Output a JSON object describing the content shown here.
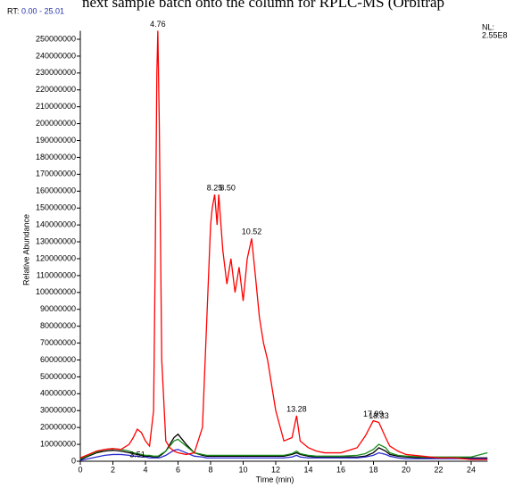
{
  "chart_data": {
    "type": "line",
    "caption": "next sample batch onto the column for RPLC-MS (Orbitrap",
    "rt_label": "RT:",
    "rt_range": "0.00 - 25.01",
    "nl_label": "NL:",
    "nl_value": "2.55E8",
    "xlabel": "Time (min)",
    "ylabel": "Relative Abundance",
    "xlim": [
      0,
      25.01
    ],
    "ylim": [
      0,
      255000000
    ],
    "xticks": [
      0,
      2,
      4,
      6,
      8,
      10,
      12,
      14,
      16,
      18,
      20,
      22,
      24
    ],
    "yticks": [
      0,
      10000000,
      20000000,
      30000000,
      40000000,
      50000000,
      60000000,
      70000000,
      80000000,
      90000000,
      100000000,
      110000000,
      120000000,
      130000000,
      140000000,
      150000000,
      160000000,
      170000000,
      180000000,
      190000000,
      200000000,
      210000000,
      220000000,
      230000000,
      240000000,
      250000000
    ],
    "x": [
      0,
      0.5,
      1,
      1.5,
      2,
      2.5,
      3,
      3.25,
      3.5,
      3.75,
      4,
      4.25,
      4.5,
      4.6,
      4.7,
      4.76,
      4.85,
      5,
      5.25,
      5.5,
      5.75,
      6,
      6.5,
      7,
      7.5,
      7.75,
      8,
      8.1,
      8.25,
      8.4,
      8.5,
      8.75,
      9,
      9.25,
      9.5,
      9.75,
      10,
      10.25,
      10.52,
      10.75,
      11,
      11.25,
      11.5,
      11.75,
      12,
      12.5,
      13,
      13.28,
      13.5,
      14,
      14.5,
      15,
      16,
      17,
      17.5,
      17.99,
      18.33,
      18.75,
      19,
      19.5,
      20,
      21,
      22,
      23,
      24,
      25
    ],
    "series": [
      {
        "name": "black",
        "color": "#000000",
        "values": [
          1000000,
          3000000,
          5000000,
          6000000,
          6500000,
          6000000,
          5000000,
          4500000,
          4000000,
          3500000,
          3000000,
          3000000,
          2500000,
          2500000,
          2500000,
          2500000,
          3000000,
          4000000,
          6000000,
          10000000,
          14000000,
          16000000,
          10000000,
          5000000,
          3500000,
          3000000,
          3000000,
          3000000,
          3000000,
          3000000,
          3000000,
          3000000,
          3000000,
          3000000,
          3000000,
          3000000,
          3000000,
          3000000,
          3000000,
          3000000,
          3000000,
          3000000,
          3000000,
          3000000,
          3000000,
          3000000,
          4000000,
          5000000,
          4000000,
          3000000,
          2500000,
          2500000,
          2500000,
          2500000,
          3000000,
          5000000,
          8000000,
          6000000,
          4000000,
          3000000,
          2500000,
          2000000,
          2000000,
          2000000,
          2000000,
          2000000
        ]
      },
      {
        "name": "green",
        "color": "#1a8a1a",
        "values": [
          1500000,
          3500000,
          5500000,
          7000000,
          7500000,
          7000000,
          6000000,
          5000000,
          4500000,
          4000000,
          3500000,
          3500000,
          3000000,
          3000000,
          3000000,
          3000000,
          3500000,
          4500000,
          6000000,
          9000000,
          12000000,
          13000000,
          9000000,
          5000000,
          4000000,
          3500000,
          3500000,
          3500000,
          3500000,
          3500000,
          3500000,
          3500000,
          3500000,
          3500000,
          3500000,
          3500000,
          3500000,
          3500000,
          3500000,
          3500000,
          3500000,
          3500000,
          3500000,
          3500000,
          3500000,
          3500000,
          4500000,
          6000000,
          4500000,
          3500000,
          3000000,
          3000000,
          3000000,
          3500000,
          4500000,
          7000000,
          10000000,
          8000000,
          5000000,
          3500000,
          3000000,
          2500000,
          2500000,
          2500000,
          2500000,
          5000000
        ]
      },
      {
        "name": "blue",
        "color": "#2a2ad0",
        "values": [
          500000,
          1500000,
          2500000,
          3500000,
          4000000,
          4000000,
          3500000,
          3000000,
          3000000,
          2500000,
          2500000,
          2000000,
          2000000,
          2000000,
          2000000,
          2000000,
          2000000,
          2500000,
          3500000,
          5000000,
          6500000,
          7000000,
          5000000,
          3000000,
          2500000,
          2000000,
          2000000,
          2000000,
          2000000,
          2000000,
          2000000,
          2000000,
          2000000,
          2000000,
          2000000,
          2000000,
          2000000,
          2000000,
          2000000,
          2000000,
          2000000,
          2000000,
          2000000,
          2000000,
          2000000,
          2000000,
          2500000,
          3500000,
          2500000,
          2000000,
          2000000,
          2000000,
          2000000,
          2000000,
          2500000,
          3500000,
          5000000,
          4000000,
          3000000,
          2000000,
          1500000,
          1500000,
          1500000,
          1500000,
          1500000,
          1500000
        ]
      },
      {
        "name": "red",
        "color": "#ff0000",
        "values": [
          2000000,
          4000000,
          6000000,
          7000000,
          7500000,
          7000000,
          10000000,
          14000000,
          19000000,
          17000000,
          12000000,
          9000000,
          30000000,
          120000000,
          230000000,
          255000000,
          200000000,
          60000000,
          12000000,
          8000000,
          6000000,
          5000000,
          4000000,
          5000000,
          20000000,
          80000000,
          140000000,
          150000000,
          158000000,
          140000000,
          158000000,
          125000000,
          105000000,
          120000000,
          100000000,
          115000000,
          95000000,
          120000000,
          132000000,
          110000000,
          85000000,
          70000000,
          60000000,
          45000000,
          30000000,
          12000000,
          14000000,
          27000000,
          12000000,
          8000000,
          6000000,
          5000000,
          5000000,
          8000000,
          15000000,
          24000000,
          23000000,
          14000000,
          9000000,
          6000000,
          4000000,
          3000000,
          2000000,
          2000000,
          1000000,
          1000000
        ]
      }
    ],
    "peaks": [
      {
        "x": 3.51,
        "label": "3.51"
      },
      {
        "x": 4.76,
        "label": "4.76"
      },
      {
        "x": 8.25,
        "label": "8.25"
      },
      {
        "x": 8.5,
        "label": "8.50"
      },
      {
        "x": 10.52,
        "label": "10.52"
      },
      {
        "x": 13.28,
        "label": "13.28"
      },
      {
        "x": 17.99,
        "label": "17.99"
      },
      {
        "x": 18.33,
        "label": "18.33"
      }
    ]
  }
}
